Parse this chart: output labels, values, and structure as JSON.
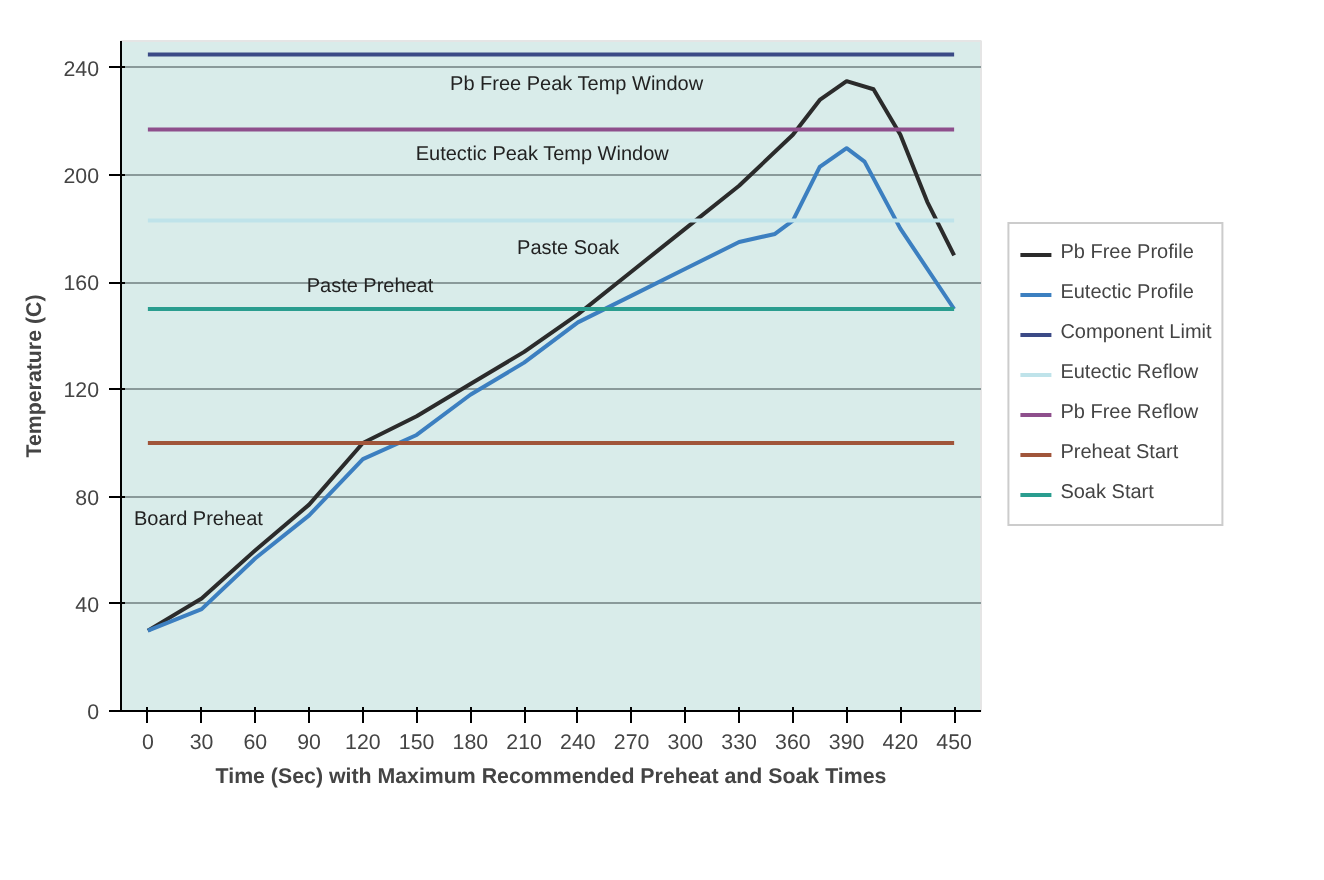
{
  "chart_data": {
    "type": "line",
    "xlabel": "Time (Sec) with Maximum Recommended Preheat and Soak Times",
    "ylabel": "Temperature (C)",
    "xlim": [
      -15,
      465
    ],
    "xticks": [
      0,
      30,
      60,
      90,
      120,
      150,
      180,
      210,
      240,
      270,
      300,
      330,
      360,
      390,
      420,
      450
    ],
    "ylim": [
      0,
      250
    ],
    "yticks": [
      0,
      40,
      80,
      120,
      160,
      200,
      240
    ],
    "grid": "y",
    "legend": "right",
    "marker": "none",
    "line_style": "solid",
    "series": [
      {
        "name": "Pb Free Profile",
        "color": "#2b2b2b",
        "x": [
          0,
          30,
          60,
          90,
          120,
          150,
          180,
          210,
          240,
          270,
          300,
          330,
          360,
          375,
          390,
          405,
          420,
          435,
          450
        ],
        "values": [
          30,
          42,
          60,
          77,
          100,
          110,
          122,
          134,
          148,
          164,
          180,
          196,
          215,
          228,
          235,
          232,
          215,
          190,
          170
        ]
      },
      {
        "name": "Eutectic Profile",
        "color": "#3c7fc0",
        "x": [
          0,
          30,
          60,
          90,
          120,
          150,
          180,
          210,
          240,
          270,
          300,
          330,
          350,
          360,
          375,
          390,
          400,
          420,
          450
        ],
        "values": [
          30,
          38,
          57,
          73,
          94,
          103,
          118,
          130,
          145,
          155,
          165,
          175,
          178,
          183,
          203,
          210,
          205,
          180,
          150
        ]
      },
      {
        "name": "Component Limit",
        "color": "#3b4a86",
        "x": [
          0,
          450
        ],
        "values": [
          245,
          245
        ]
      },
      {
        "name": "Eutectic Reflow",
        "color": "#bfe3ea",
        "x": [
          0,
          450
        ],
        "values": [
          183,
          183
        ]
      },
      {
        "name": "Pb Free Reflow",
        "color": "#8e4f8c",
        "x": [
          0,
          450
        ],
        "values": [
          217,
          217
        ]
      },
      {
        "name": "Preheat Start",
        "color": "#a0553a",
        "x": [
          0,
          450
        ],
        "values": [
          100,
          100
        ]
      },
      {
        "name": "Soak Start",
        "color": "#2a9d8f",
        "x": [
          0,
          450
        ],
        "values": [
          150,
          150
        ]
      }
    ],
    "annotations": [
      "Pb Free Peak Temp Window",
      "Eutectic Peak Temp Window",
      "Paste Soak",
      {
        "text": "Paste Preheat",
        "x": 124,
        "y": 152
      },
      "Board Preheat"
    ]
  }
}
